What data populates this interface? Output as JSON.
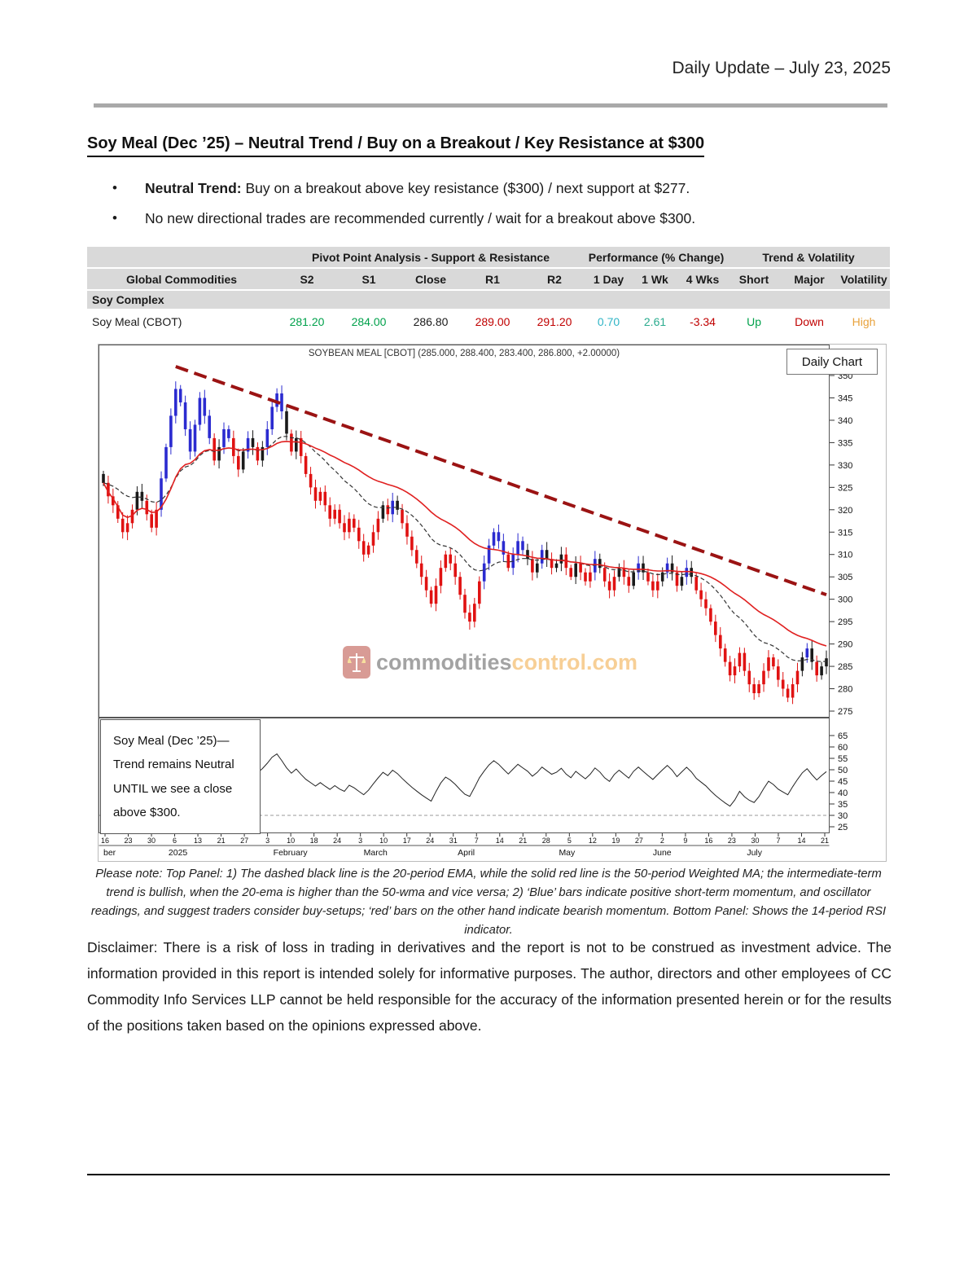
{
  "page": {
    "header_right": "Daily Update – July 23, 2025",
    "title": "Soy Meal (Dec ’25) – Neutral Trend / Buy on a Breakout / Key Resistance at $300",
    "bullets": [
      {
        "bold": "Neutral Trend: ",
        "text": "Buy on a breakout above key resistance ($300) / next support at $277."
      },
      {
        "bold": "",
        "text": "No new directional trades are recommended currently / wait for a breakout above $300."
      }
    ],
    "note": "Please note: Top Panel: 1) The dashed black line is the 20-period EMA, while the solid red line is the 50-period Weighted MA; the intermediate-term trend is bullish, when the 20-ema is higher than the 50-wma and vice versa; 2) ‘Blue’ bars indicate positive short-term momentum, and oscillator readings, and suggest traders consider buy-setups; ‘red’ bars on the other hand indicate bearish momentum. Bottom Panel: Shows the 14-period RSI indicator.",
    "disclaimer": "Disclaimer: There is a risk of loss in trading in derivatives and the report is not to be construed as investment advice. The information provided in this report is intended solely for informative purposes. The author, directors and other employees of CC Commodity Info Services LLP cannot be held responsible for the accuracy of the information presented herein or for the results of the positions taken based on the opinions expressed above."
  },
  "table": {
    "group_headers": [
      "",
      "Pivot Point Analysis - Support & Resistance",
      "Performance (% Change)",
      "Trend & Volatility"
    ],
    "columns": [
      "Global Commodities",
      "S2",
      "S1",
      "Close",
      "R1",
      "R2",
      "1 Day",
      "1 Wk",
      "4 Wks",
      "Short",
      "Major",
      "Volatility"
    ],
    "section_label": "Soy Complex",
    "rows": [
      {
        "name": "Soy Meal (CBOT)",
        "values": [
          "281.20",
          "284.00",
          "286.80",
          "289.00",
          "291.20",
          "0.70",
          "2.61",
          "-3.34",
          "Up",
          "Down",
          "High"
        ],
        "value_colors": [
          "#00a14b",
          "#00a14b",
          "#1a1a1a",
          "#c00000",
          "#c00000",
          "#2fb5c6",
          "#2aab8e",
          "#c00000",
          "#00a14b",
          "#c00000",
          "#e8a23c"
        ]
      }
    ]
  },
  "chart": {
    "badge": "Daily Chart",
    "annotation": [
      "Soy Meal (Dec ’25)—",
      "Trend remains Neutral",
      "UNTIL we see a close",
      "above $300."
    ],
    "watermark": {
      "part1": "commodities",
      "part2": "control.com",
      "color1": "#4a4a4a",
      "color2": "#f0a030"
    }
  },
  "chart_data": {
    "type": "candlestick",
    "title": "SOYBEAN MEAL [CBOT] (285.000, 288.400, 283.400, 286.800, +2.00000)",
    "instrument": "Soybean Meal (CBOT), Dec '25",
    "last_close": 286.8,
    "price_range": [
      275,
      350
    ],
    "rsi_range": [
      25,
      65
    ],
    "price_ticks": [
      350,
      345,
      340,
      335,
      330,
      325,
      320,
      315,
      310,
      305,
      300,
      295,
      290,
      285,
      280,
      275
    ],
    "rsi_ticks": [
      65,
      60,
      55,
      50,
      45,
      40,
      35,
      30,
      25
    ],
    "x_ticks": [
      "16",
      "23",
      "30",
      "6",
      "13",
      "21",
      "27",
      "3",
      "10",
      "18",
      "24",
      "3",
      "10",
      "17",
      "24",
      "31",
      "7",
      "14",
      "21",
      "28",
      "5",
      "12",
      "19",
      "27",
      "2",
      "9",
      "16",
      "23",
      "30",
      "7",
      "14",
      "21"
    ],
    "months": [
      {
        "label": "ber",
        "x": 0.0
      },
      {
        "label": "2025",
        "x": 0.09
      },
      {
        "label": "February",
        "x": 0.235
      },
      {
        "label": "March",
        "x": 0.36
      },
      {
        "label": "April",
        "x": 0.49
      },
      {
        "label": "May",
        "x": 0.63
      },
      {
        "label": "June",
        "x": 0.76
      },
      {
        "label": "July",
        "x": 0.89
      }
    ],
    "close": [
      326,
      323,
      321,
      318,
      315,
      317,
      320,
      324,
      322,
      319,
      316,
      320,
      327,
      334,
      341,
      347,
      344,
      338,
      333,
      339,
      345,
      341,
      336,
      331,
      334,
      338,
      336,
      332,
      329,
      333,
      336,
      334,
      331,
      334,
      338,
      343,
      346,
      342,
      337,
      333,
      336,
      332,
      328,
      325,
      322,
      324,
      321,
      318,
      320,
      317,
      315,
      318,
      316,
      313,
      310,
      312,
      315,
      318,
      321,
      319,
      322,
      320,
      317,
      314,
      311,
      308,
      305,
      302,
      299,
      303,
      307,
      310,
      308,
      305,
      301,
      297,
      295,
      299,
      304,
      308,
      312,
      315,
      313,
      310,
      307,
      310,
      313,
      311,
      309,
      306,
      308,
      311,
      309,
      307,
      308,
      310,
      307,
      305,
      308,
      306,
      304,
      306,
      309,
      307,
      304,
      302,
      305,
      307,
      305,
      303,
      306,
      308,
      306,
      304,
      302,
      304,
      306,
      308,
      306,
      303,
      305,
      307,
      305,
      302,
      300,
      298,
      295,
      292,
      289,
      286,
      283,
      285,
      288,
      284,
      281,
      279,
      281,
      284,
      287,
      285,
      282,
      280,
      278,
      281,
      284,
      287,
      289,
      286,
      283,
      285,
      286.8
    ],
    "overlays": [
      "20-period EMA (dashed black)",
      "50-period Weighted MA (solid red)",
      "downtrend resistance line (dashed dark red)"
    ],
    "lower_panel": "14-period RSI, dashed reference line at 30",
    "trendline": {
      "i1": 15,
      "p1": 352,
      "i2": 150,
      "p2": 301
    },
    "colors": {
      "up": "#2b2bd0",
      "down": "#e01212",
      "neutral": "#1a1a1a",
      "ema": "#333333",
      "wma": "#e02020",
      "trend": "#9b1313"
    }
  }
}
